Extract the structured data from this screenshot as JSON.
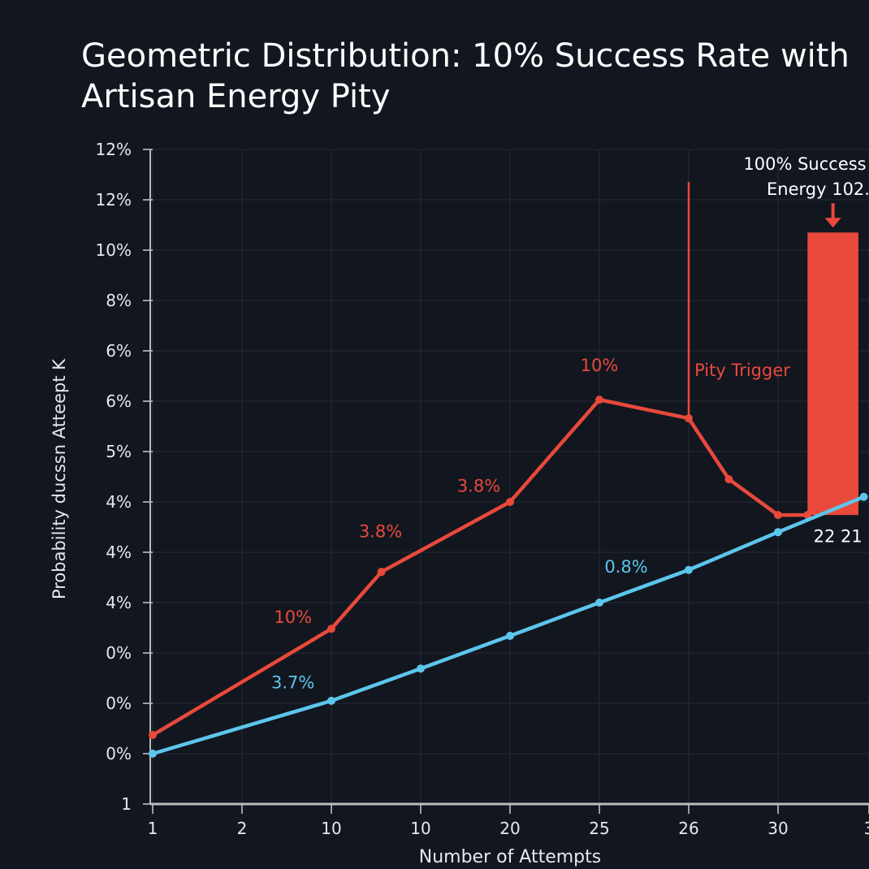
{
  "chart_data": {
    "type": "line",
    "title_lines": [
      "Geometric Distribution: 10% Success Rate with",
      "Artisan Energy Pity"
    ],
    "xlabel": "Number of Attempts",
    "ylabel": "Probability ducssn Atteept K",
    "x_tick_labels": [
      "1",
      "2",
      "10",
      "10",
      "20",
      "25",
      "26",
      "30",
      "3"
    ],
    "y_tick_labels": [
      "1",
      "0%",
      "0%",
      "0%",
      "4%",
      "4%",
      "4%",
      "5%",
      "6%",
      "6%",
      "8%",
      "10%",
      "12%",
      "12%"
    ],
    "ylim": [
      0,
      13
    ],
    "xlim": [
      0,
      8
    ],
    "grid": true,
    "colors": {
      "red": "#e8493b",
      "blue": "#5cc6ec",
      "background": "#12161f",
      "grid": "#262b36"
    },
    "series": [
      {
        "color": "red",
        "points": [
          [
            0,
            1.37
          ],
          [
            2,
            3.48
          ],
          [
            2.56,
            4.61
          ],
          [
            4,
            6.0
          ],
          [
            5,
            8.03
          ],
          [
            6,
            7.66
          ],
          [
            6.45,
            6.45
          ],
          [
            7,
            5.74
          ],
          [
            7.33,
            5.74
          ]
        ]
      },
      {
        "color": "blue",
        "points": [
          [
            0,
            1.0
          ],
          [
            2,
            2.05
          ],
          [
            3,
            2.69
          ],
          [
            4,
            3.34
          ],
          [
            5,
            4.0
          ],
          [
            6,
            4.65
          ],
          [
            7,
            5.4
          ],
          [
            7.96,
            6.1
          ]
        ]
      }
    ],
    "bar": {
      "x_from": 7.33,
      "x_to": 7.9,
      "y_from": 5.74,
      "y_to": 11.35,
      "color": "red"
    },
    "pity_line": {
      "x": 6,
      "y_from": 7.66,
      "y_to": 12.35
    },
    "annotations": [
      {
        "text": "10%",
        "x": 5,
        "y": 8.6,
        "color": "red"
      },
      {
        "text": "Pity Trigger",
        "x": 6.6,
        "y": 8.5,
        "color": "red"
      },
      {
        "text": "3.8%",
        "x": 3.65,
        "y": 6.2,
        "color": "red"
      },
      {
        "text": "3.8%",
        "x": 2.55,
        "y": 5.3,
        "color": "red"
      },
      {
        "text": "10%",
        "x": 1.57,
        "y": 3.6,
        "color": "red"
      },
      {
        "text": "0.8%",
        "x": 5.3,
        "y": 4.6,
        "color": "blue"
      },
      {
        "text": "3.7%",
        "x": 1.57,
        "y": 2.3,
        "color": "blue"
      },
      {
        "text": "22 21",
        "x": 7.67,
        "y": 5.2,
        "color": "white"
      },
      {
        "text": "100% Success",
        "x": 7.3,
        "y": 12.6,
        "color": "white"
      },
      {
        "text": "Energy 102.",
        "x": 7.45,
        "y": 12.1,
        "color": "white"
      }
    ]
  }
}
